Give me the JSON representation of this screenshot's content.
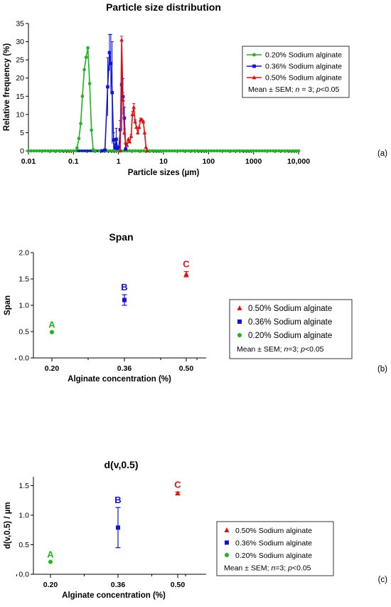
{
  "colors": {
    "green": "#1fb51f",
    "blue": "#1010e0",
    "red": "#e01010"
  },
  "chart_data": [
    {
      "panel_label": "(a)",
      "type": "line",
      "title": "Particle size distribution",
      "xlabel": "Particle sizes (µm)",
      "ylabel": "Relative frequency (%)",
      "xscale": "log",
      "xlim": [
        0.01,
        10000
      ],
      "ylim": [
        0,
        35
      ],
      "xtick_labels": [
        "0.01",
        "0.1",
        "1",
        "10",
        "100",
        "1000",
        "10,000"
      ],
      "xticks": [
        0.01,
        0.1,
        1,
        10,
        100,
        1000,
        10000
      ],
      "ytick_labels": [
        "0",
        "5",
        "10",
        "15",
        "20",
        "25",
        "30",
        "35"
      ],
      "yticks": [
        0,
        5,
        10,
        15,
        20,
        25,
        30,
        35
      ],
      "legend_position": "right",
      "legend_note": {
        "before": "Mean ± SEM; ",
        "n_var": "n",
        "mid": " = 3; ",
        "p_var": "p",
        "after": "<0.05"
      },
      "series": [
        {
          "name": "0.20% Sodium alginate",
          "color": "#1fb51f",
          "marker": "circle",
          "x": [
            0.12,
            0.132,
            0.145,
            0.158,
            0.174,
            0.191,
            0.209,
            0.229,
            0.251,
            0.275,
            0.302
          ],
          "y": [
            0.8,
            3.4,
            7.5,
            15.0,
            22.3,
            25.7,
            28.3,
            18.5,
            5.7,
            0.3,
            0.0
          ],
          "err": [
            0,
            0,
            0,
            0,
            0,
            0,
            0,
            0,
            0,
            0,
            0
          ]
        },
        {
          "name": "0.36% Sodium alginate",
          "color": "#1010e0",
          "marker": "square",
          "x": [
            0.43,
            0.5,
            0.575,
            0.631,
            0.676,
            0.724,
            0.776,
            0.832,
            0.891,
            0.955,
            1.023,
            1.096,
            1.175,
            1.259,
            1.349,
            1.445
          ],
          "y": [
            0.0,
            0.2,
            17.6,
            27.0,
            24.0,
            16.0,
            3.0,
            0.8,
            3.2,
            0.7,
            1.0,
            5.8,
            18.2,
            14.9,
            9.0,
            0.5
          ],
          "err": [
            0,
            0,
            8.0,
            5.0,
            8.0,
            14.0,
            2.0,
            0,
            3.0,
            0,
            0,
            2.5,
            12.0,
            5.0,
            3.0,
            0
          ]
        },
        {
          "name": "0.50% Sodium alginate",
          "color": "#e01010",
          "marker": "triangle",
          "x": [
            1.096,
            1.175,
            1.259,
            1.349,
            1.445,
            1.549,
            1.66,
            1.778,
            1.905,
            2.042,
            2.188,
            2.344,
            2.512,
            2.692,
            2.884,
            3.09,
            3.311,
            3.548,
            3.802,
            4.074,
            4.365
          ],
          "y": [
            0.0,
            30.5,
            14.0,
            5.0,
            2.2,
            1.5,
            3.2,
            2.5,
            4.0,
            10.0,
            12.0,
            8.0,
            6.5,
            5.0,
            6.5,
            8.5,
            8.5,
            8.0,
            5.0,
            1.0,
            0.0
          ],
          "err": [
            0,
            1.0,
            2.0,
            1.0,
            0,
            0,
            0,
            0,
            0.5,
            0.8,
            1.0,
            0.5,
            0,
            0,
            0,
            0.5,
            0.3,
            0.3,
            0,
            0,
            0
          ]
        }
      ]
    },
    {
      "panel_label": "(b)",
      "type": "scatter",
      "title": "Span",
      "xlabel": "Alginate concentration (%)",
      "ylabel": "Span",
      "categories": [
        "0.20",
        "0.36",
        "0.50"
      ],
      "ylim": [
        0,
        2.0
      ],
      "ytick_labels": [
        "0.0",
        "0.5",
        "1.0",
        "1.5",
        "2.0"
      ],
      "yticks": [
        0,
        0.5,
        1.0,
        1.5,
        2.0
      ],
      "legend_position": "right",
      "legend_note": {
        "before": "Mean ± SEM; ",
        "n_var": "n",
        "mid": "=3; ",
        "p_var": "p",
        "after": "<0.05"
      },
      "points": [
        {
          "category": "0.50",
          "name": "0.50% Sodium alginate",
          "value": 1.59,
          "err": 0.05,
          "color": "#e01010",
          "marker": "triangle",
          "group": "C"
        },
        {
          "category": "0.36",
          "name": "0.36% Sodium alginate",
          "value": 1.1,
          "err": 0.1,
          "color": "#1010e0",
          "marker": "square",
          "group": "B"
        },
        {
          "category": "0.20",
          "name": "0.20% Sodium alginate",
          "value": 0.49,
          "err": 0.0,
          "color": "#1fb51f",
          "marker": "circle",
          "group": "A"
        }
      ]
    },
    {
      "panel_label": "(c)",
      "type": "scatter",
      "title": "d(v,0.5)",
      "xlabel": "Alginate concentration (%)",
      "ylabel": "d(v,0.5) / µm",
      "categories": [
        "0.20",
        "0.36",
        "0.50"
      ],
      "ylim": [
        0,
        1.65
      ],
      "ytick_labels": [
        "0.0",
        "0.5",
        "1.0",
        "1.5"
      ],
      "yticks": [
        0,
        0.5,
        1.0,
        1.5
      ],
      "legend_position": "right",
      "legend_note": {
        "before": "Mean ± SEM; ",
        "n_var": "n",
        "mid": "=3; ",
        "p_var": "p",
        "after": "<0.05"
      },
      "points": [
        {
          "category": "0.50",
          "name": "0.50% Sodium alginate",
          "value": 1.37,
          "err": 0.02,
          "color": "#e01010",
          "marker": "triangle",
          "group": "C"
        },
        {
          "category": "0.36",
          "name": "0.36% Sodium alginate",
          "value": 0.79,
          "err": 0.34,
          "color": "#1010e0",
          "marker": "square",
          "group": "B"
        },
        {
          "category": "0.20",
          "name": "0.20% Sodium alginate",
          "value": 0.21,
          "err": 0.0,
          "color": "#1fb51f",
          "marker": "circle",
          "group": "A"
        }
      ]
    }
  ]
}
